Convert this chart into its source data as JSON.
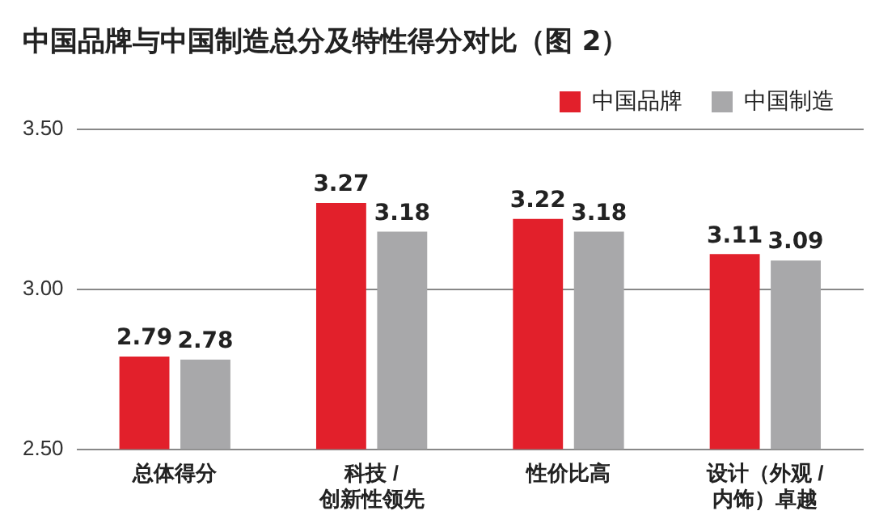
{
  "chart_data": {
    "type": "bar",
    "title": "中国品牌与中国制造总分及特性得分对比（图 2）",
    "categories": [
      "总体得分",
      "科技 /\n创新性领先",
      "性价比高",
      "设计（外观 /\n内饰）卓越"
    ],
    "series": [
      {
        "name": "中国品牌",
        "color": "#e2202b",
        "values": [
          2.79,
          3.27,
          3.22,
          3.11
        ]
      },
      {
        "name": "中国制造",
        "color": "#a8a8aa",
        "values": [
          2.78,
          3.18,
          3.18,
          3.09
        ]
      }
    ],
    "ylim": [
      2.5,
      3.5
    ],
    "yticks": [
      {
        "value": 2.5,
        "label": "2.50"
      },
      {
        "value": 3,
        "label": "3.00"
      },
      {
        "value": 3.5,
        "label": "3.50"
      }
    ],
    "grid": "y",
    "legend": "top right",
    "data_labels": true
  }
}
